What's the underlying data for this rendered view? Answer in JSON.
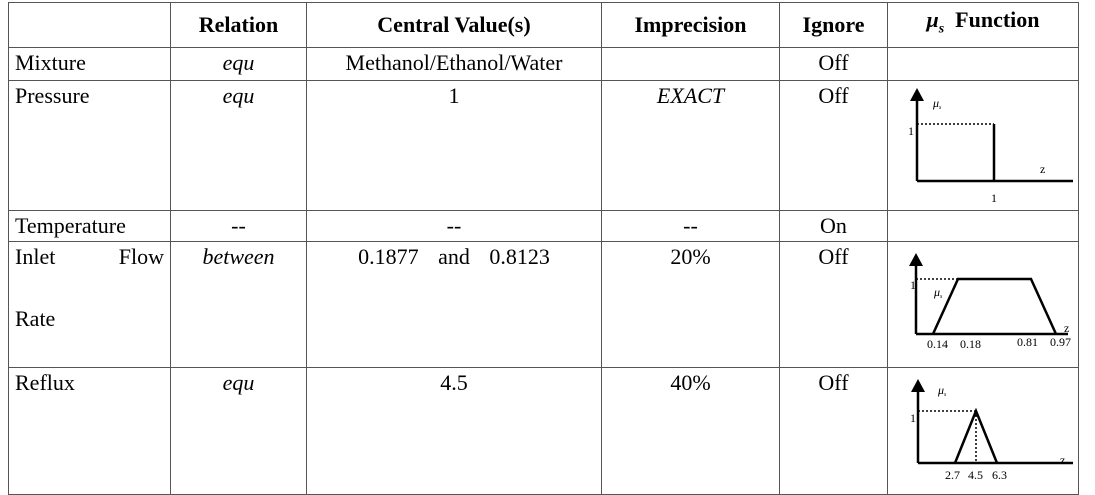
{
  "table": {
    "columns": [
      "Relation",
      "Central Value(s)",
      "Imprecision",
      "Ignore"
    ],
    "function_column": {
      "symbol": "μ",
      "subscript": "s",
      "label": "Function"
    },
    "rows": [
      {
        "name": "Mixture",
        "relation": "equ",
        "central": "Methanol/Ethanol/Water",
        "ignore": "Off"
      },
      {
        "name": "Pressure",
        "relation": "equ",
        "central": "1",
        "imprecision": "EXACT",
        "ignore": "Off",
        "plot": {
          "y_symbol": "μ",
          "y_subscript": "s",
          "y_tick": "1",
          "x_label": "z",
          "x_ticks": [
            "1"
          ]
        }
      },
      {
        "name": "Temperature",
        "relation": "--",
        "central": "--",
        "imprecision": "--",
        "ignore": "On"
      },
      {
        "name_lines": [
          "Inlet Flow",
          "Rate"
        ],
        "relation": "between",
        "central": "0.1877 and 0.8123",
        "imprecision": "20%",
        "ignore": "Off",
        "plot": {
          "y_symbol": "μ",
          "y_subscript": "s",
          "y_tick": "1",
          "x_label": "z",
          "x_ticks": [
            "0.14",
            "0.18",
            "0.81",
            "0.97"
          ]
        }
      },
      {
        "name": "Reflux",
        "relation": "equ",
        "central": "4.5",
        "imprecision": "40%",
        "ignore": "Off",
        "plot": {
          "y_symbol": "μ",
          "y_subscript": "s",
          "y_tick": "1",
          "x_label": "z",
          "x_ticks": [
            "2.7",
            "4.5",
            "6.3"
          ]
        }
      }
    ]
  }
}
